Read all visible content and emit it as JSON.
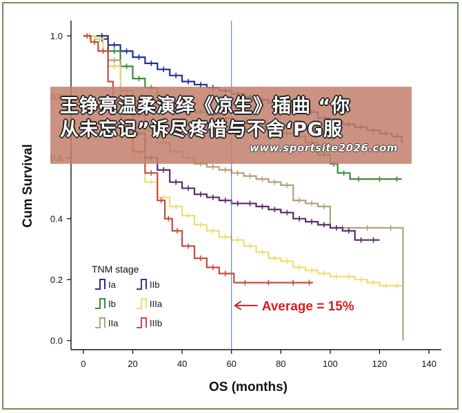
{
  "chart_data": {
    "type": "line",
    "title": "",
    "xlabel": "OS (months)",
    "ylabel": "Cum Survival",
    "xlim": [
      -5,
      145
    ],
    "ylim": [
      -0.03,
      1.05
    ],
    "x_ticks": [
      0,
      20,
      40,
      60,
      80,
      100,
      120,
      140
    ],
    "y_ticks": [
      0.0,
      0.2,
      0.4,
      0.6,
      0.8,
      1.0
    ],
    "legend_title": "TNM stage",
    "legend_position": "bottom-left",
    "grid": false,
    "series": [
      {
        "name": "Ia",
        "color": "#1f2f8f",
        "points": [
          [
            0,
            1.0
          ],
          [
            5,
            1.0
          ],
          [
            10,
            0.97
          ],
          [
            15,
            0.95
          ],
          [
            20,
            0.93
          ],
          [
            25,
            0.91
          ],
          [
            30,
            0.89
          ],
          [
            35,
            0.87
          ],
          [
            40,
            0.85
          ],
          [
            45,
            0.84
          ],
          [
            50,
            0.83
          ],
          [
            55,
            0.82
          ],
          [
            60,
            0.81
          ],
          [
            65,
            0.8
          ],
          [
            70,
            0.79
          ],
          [
            75,
            0.78
          ],
          [
            80,
            0.77
          ],
          [
            85,
            0.76
          ],
          [
            90,
            0.75
          ],
          [
            95,
            0.73
          ],
          [
            100,
            0.72
          ],
          [
            105,
            0.71
          ],
          [
            110,
            0.7
          ],
          [
            115,
            0.69
          ],
          [
            120,
            0.68
          ],
          [
            125,
            0.67
          ],
          [
            129,
            0.65
          ]
        ]
      },
      {
        "name": "Ib",
        "color": "#3a8a3a",
        "points": [
          [
            0,
            1.0
          ],
          [
            5,
            0.99
          ],
          [
            10,
            0.95
          ],
          [
            15,
            0.9
          ],
          [
            20,
            0.86
          ],
          [
            25,
            0.83
          ],
          [
            30,
            0.8
          ],
          [
            35,
            0.78
          ],
          [
            40,
            0.76
          ],
          [
            45,
            0.75
          ],
          [
            50,
            0.74
          ],
          [
            55,
            0.73
          ],
          [
            60,
            0.72
          ],
          [
            65,
            0.71
          ],
          [
            70,
            0.7
          ],
          [
            75,
            0.69
          ],
          [
            80,
            0.68
          ],
          [
            85,
            0.67
          ],
          [
            90,
            0.65
          ],
          [
            95,
            0.61
          ],
          [
            100,
            0.58
          ],
          [
            103,
            0.55
          ],
          [
            108,
            0.53
          ],
          [
            115,
            0.53
          ],
          [
            125,
            0.53
          ],
          [
            129,
            0.53
          ]
        ]
      },
      {
        "name": "IIa",
        "color": "#b0a278",
        "points": [
          [
            0,
            1.0
          ],
          [
            5,
            0.99
          ],
          [
            10,
            0.92
          ],
          [
            15,
            0.82
          ],
          [
            20,
            0.74
          ],
          [
            25,
            0.69
          ],
          [
            30,
            0.65
          ],
          [
            35,
            0.62
          ],
          [
            40,
            0.6
          ],
          [
            45,
            0.58
          ],
          [
            50,
            0.57
          ],
          [
            55,
            0.56
          ],
          [
            60,
            0.55
          ],
          [
            65,
            0.54
          ],
          [
            70,
            0.53
          ],
          [
            75,
            0.52
          ],
          [
            80,
            0.51
          ],
          [
            85,
            0.46
          ],
          [
            90,
            0.45
          ],
          [
            95,
            0.44
          ],
          [
            100,
            0.37
          ],
          [
            110,
            0.37
          ],
          [
            120,
            0.37
          ],
          [
            129,
            0.37
          ],
          [
            129.5,
            0.0
          ]
        ]
      },
      {
        "name": "IIb",
        "color": "#5a2a6e",
        "points": [
          [
            0,
            1.0
          ],
          [
            5,
            0.99
          ],
          [
            10,
            0.9
          ],
          [
            15,
            0.8
          ],
          [
            20,
            0.68
          ],
          [
            25,
            0.6
          ],
          [
            30,
            0.56
          ],
          [
            35,
            0.52
          ],
          [
            40,
            0.5
          ],
          [
            45,
            0.48
          ],
          [
            50,
            0.47
          ],
          [
            55,
            0.46
          ],
          [
            60,
            0.45
          ],
          [
            65,
            0.45
          ],
          [
            70,
            0.44
          ],
          [
            75,
            0.43
          ],
          [
            80,
            0.42
          ],
          [
            85,
            0.4
          ],
          [
            90,
            0.39
          ],
          [
            95,
            0.38
          ],
          [
            100,
            0.37
          ],
          [
            105,
            0.36
          ],
          [
            110,
            0.33
          ],
          [
            115,
            0.33
          ],
          [
            120,
            0.33
          ]
        ]
      },
      {
        "name": "IIIa",
        "color": "#e8e070",
        "points": [
          [
            0,
            1.0
          ],
          [
            5,
            0.99
          ],
          [
            8,
            0.95
          ],
          [
            10,
            0.9
          ],
          [
            15,
            0.73
          ],
          [
            20,
            0.6
          ],
          [
            25,
            0.52
          ],
          [
            30,
            0.47
          ],
          [
            35,
            0.44
          ],
          [
            40,
            0.41
          ],
          [
            45,
            0.38
          ],
          [
            50,
            0.36
          ],
          [
            55,
            0.34
          ],
          [
            60,
            0.33
          ],
          [
            65,
            0.31
          ],
          [
            70,
            0.29
          ],
          [
            75,
            0.27
          ],
          [
            80,
            0.26
          ],
          [
            85,
            0.24
          ],
          [
            90,
            0.23
          ],
          [
            95,
            0.22
          ],
          [
            100,
            0.21
          ],
          [
            105,
            0.21
          ],
          [
            110,
            0.2
          ],
          [
            115,
            0.19
          ],
          [
            120,
            0.18
          ],
          [
            125,
            0.18
          ],
          [
            129,
            0.18
          ]
        ]
      },
      {
        "name": "IIIb",
        "color": "#c84a3a",
        "points": [
          [
            0,
            1.0
          ],
          [
            3,
            0.98
          ],
          [
            6,
            0.95
          ],
          [
            10,
            0.85
          ],
          [
            12,
            0.78
          ],
          [
            15,
            0.72
          ],
          [
            18,
            0.67
          ],
          [
            20,
            0.62
          ],
          [
            25,
            0.55
          ],
          [
            30,
            0.46
          ],
          [
            33,
            0.4
          ],
          [
            36,
            0.36
          ],
          [
            40,
            0.31
          ],
          [
            45,
            0.27
          ],
          [
            50,
            0.24
          ],
          [
            55,
            0.22
          ],
          [
            60,
            0.22
          ],
          [
            61,
            0.19
          ],
          [
            70,
            0.19
          ],
          [
            80,
            0.19
          ],
          [
            90,
            0.19
          ],
          [
            93,
            0.19
          ]
        ]
      }
    ],
    "annotations": {
      "average_line_x": 60,
      "average_label": "Average = 15%",
      "average_arrow_y": 0.115
    }
  },
  "banner": {
    "line1": "王铮亮温柔演绎《凉生》插曲 “你",
    "line2": "从未忘记”诉尽疼惜与不舍‘PG服",
    "url": "www.sportsite2026.com"
  },
  "colors": {
    "frame": "#6f8f4f",
    "annotation": "#d02020",
    "average_line": "#5080c0"
  }
}
